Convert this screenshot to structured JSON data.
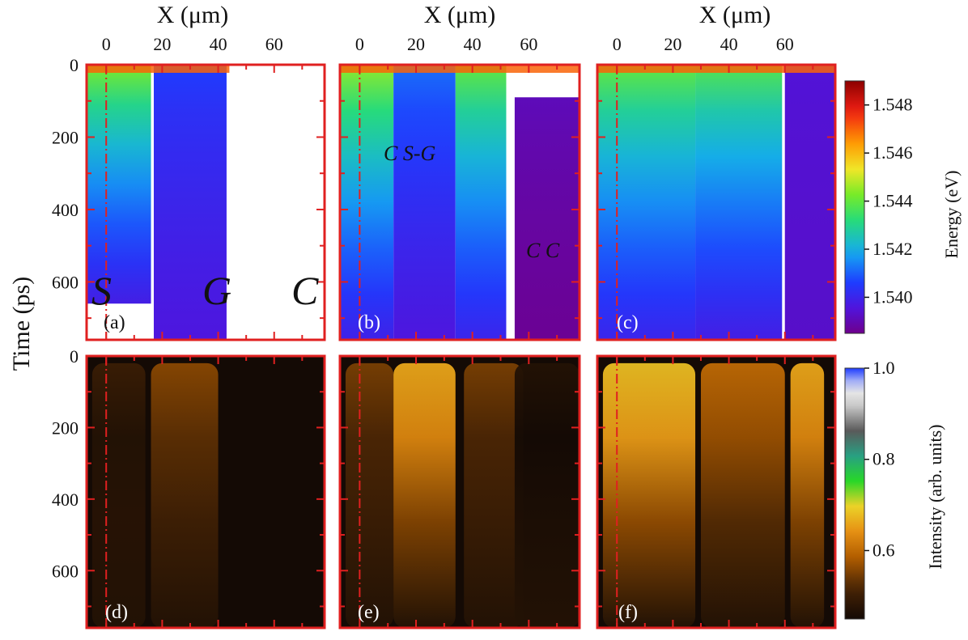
{
  "chart_data": {
    "type": "heatmap",
    "title": "",
    "xlabel": "X (μm)",
    "ylabel": "Time (ps)",
    "x_ticks": [
      0,
      20,
      40,
      60
    ],
    "y_ticks": [
      0,
      200,
      400,
      600
    ],
    "xlim": [
      -7,
      78
    ],
    "ylim": [
      0,
      760
    ],
    "dashdot_marker_x": 0,
    "panels": [
      {
        "id": "a",
        "label": "(a)",
        "quantity": "energy",
        "region_labels": [
          "S",
          "G",
          "C"
        ],
        "blocks": [
          {
            "name": "S",
            "x": [
              -7,
              16
            ],
            "t0": 0,
            "t_end": 660,
            "e0": 1.5443,
            "e_end": 1.5398
          },
          {
            "name": "G",
            "x": [
              17,
              43
            ],
            "t0": 0,
            "t_end": 760,
            "e0": 1.5406,
            "e_end": 1.5396
          }
        ]
      },
      {
        "id": "b",
        "label": "(b)",
        "quantity": "energy",
        "region_labels": [
          "C S-G",
          "C C"
        ],
        "blocks": [
          {
            "name": "S",
            "x": [
              -7,
              12
            ],
            "t0": 0,
            "t_end": 760,
            "e0": 1.5445,
            "e_end": 1.5399
          },
          {
            "name": "G",
            "x": [
              12,
              34
            ],
            "t0": 0,
            "t_end": 760,
            "e0": 1.5412,
            "e_end": 1.5396
          },
          {
            "name": "bridge",
            "x": [
              34,
              52
            ],
            "t0": 0,
            "t_end": 760,
            "e0": 1.544,
            "e_end": 1.54
          },
          {
            "name": "C",
            "x": [
              55,
              78
            ],
            "t0": 90,
            "t_end": 760,
            "e0": 1.5391,
            "e_end": 1.5386
          }
        ]
      },
      {
        "id": "c",
        "label": "(c)",
        "quantity": "energy",
        "region_labels": [],
        "blocks": [
          {
            "name": "S",
            "x": [
              -7,
              28
            ],
            "t0": 0,
            "t_end": 760,
            "e0": 1.544,
            "e_end": 1.54
          },
          {
            "name": "bridge",
            "x": [
              28,
              59
            ],
            "t0": 0,
            "t_end": 760,
            "e0": 1.5438,
            "e_end": 1.5398
          },
          {
            "name": "C",
            "x": [
              60,
              78
            ],
            "t0": 0,
            "t_end": 760,
            "e0": 1.5395,
            "e_end": 1.5393
          }
        ]
      },
      {
        "id": "d",
        "label": "(d)",
        "quantity": "intensity",
        "stripes": [
          {
            "x": [
              -5,
              14
            ],
            "peak": 0.5
          },
          {
            "x": [
              16,
              40
            ],
            "peak": 0.56
          }
        ]
      },
      {
        "id": "e",
        "label": "(e)",
        "quantity": "intensity",
        "stripes": [
          {
            "x": [
              -5,
              12
            ],
            "peak": 0.55
          },
          {
            "x": [
              12,
              34
            ],
            "peak": 0.66
          },
          {
            "x": [
              37,
              58
            ],
            "peak": 0.55
          },
          {
            "x": [
              55,
              78
            ],
            "peak": 0.47
          }
        ]
      },
      {
        "id": "f",
        "label": "(f)",
        "quantity": "intensity",
        "stripes": [
          {
            "x": [
              -5,
              28
            ],
            "peak": 0.68
          },
          {
            "x": [
              30,
              60
            ],
            "peak": 0.6
          },
          {
            "x": [
              62,
              74
            ],
            "peak": 0.66
          }
        ]
      }
    ],
    "colorbars": [
      {
        "label": "Energy (eV)",
        "range": [
          1.5385,
          1.549
        ],
        "ticks": [
          "1.540",
          "1.542",
          "1.544",
          "1.546",
          "1.548"
        ]
      },
      {
        "label": "Intensity (arb. units)",
        "range": [
          0.45,
          1.0
        ],
        "ticks": [
          "0.6",
          "0.8",
          "1.0"
        ]
      }
    ]
  }
}
